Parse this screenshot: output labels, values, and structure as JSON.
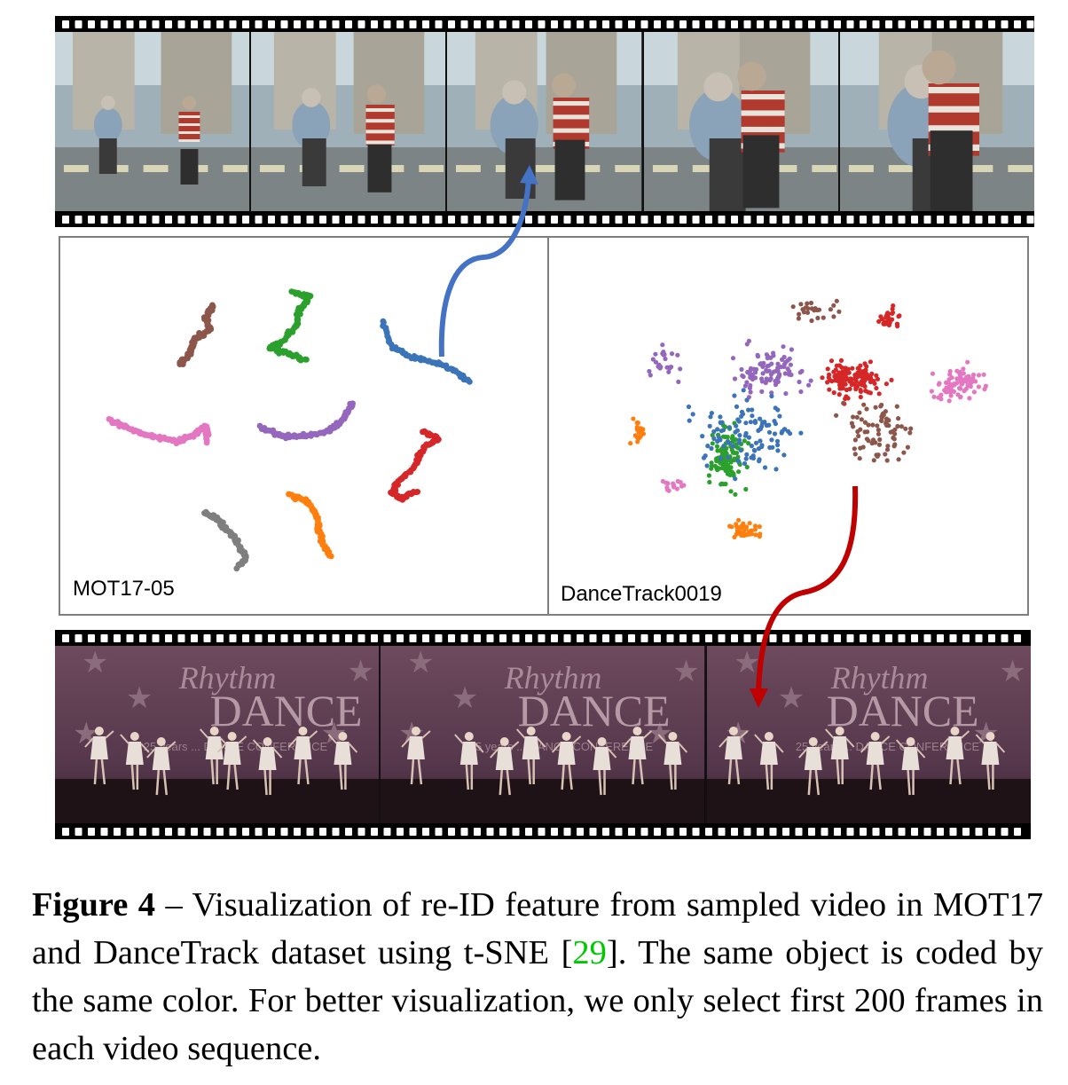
{
  "figure": {
    "label": "Figure 4",
    "dash": "–",
    "caption_before_cite": "Visualization of re-ID feature from sampled video in MOT17 and DanceTrack dataset using t-SNE [",
    "cite": "29",
    "caption_after_cite": "]. The same object is coded by the same color. For better visualization, we only select first 200 frames in each video sequence."
  },
  "panels": {
    "left_label": "MOT17-05",
    "right_label": "DanceTrack0019"
  },
  "colors": {
    "blue": "#3b74b8",
    "orange": "#ff7f0e",
    "green": "#2ca02c",
    "red": "#d62728",
    "purple": "#9467bd",
    "brown": "#8c564b",
    "pink": "#e377c2",
    "gray": "#7f7f7f",
    "arrow_blue": "#4472c4",
    "arrow_red": "#c00000"
  },
  "banner": {
    "line1": "Rhythm",
    "line2": "DANCE",
    "sub": "25 years ... DANCE CONFERENCE"
  }
}
